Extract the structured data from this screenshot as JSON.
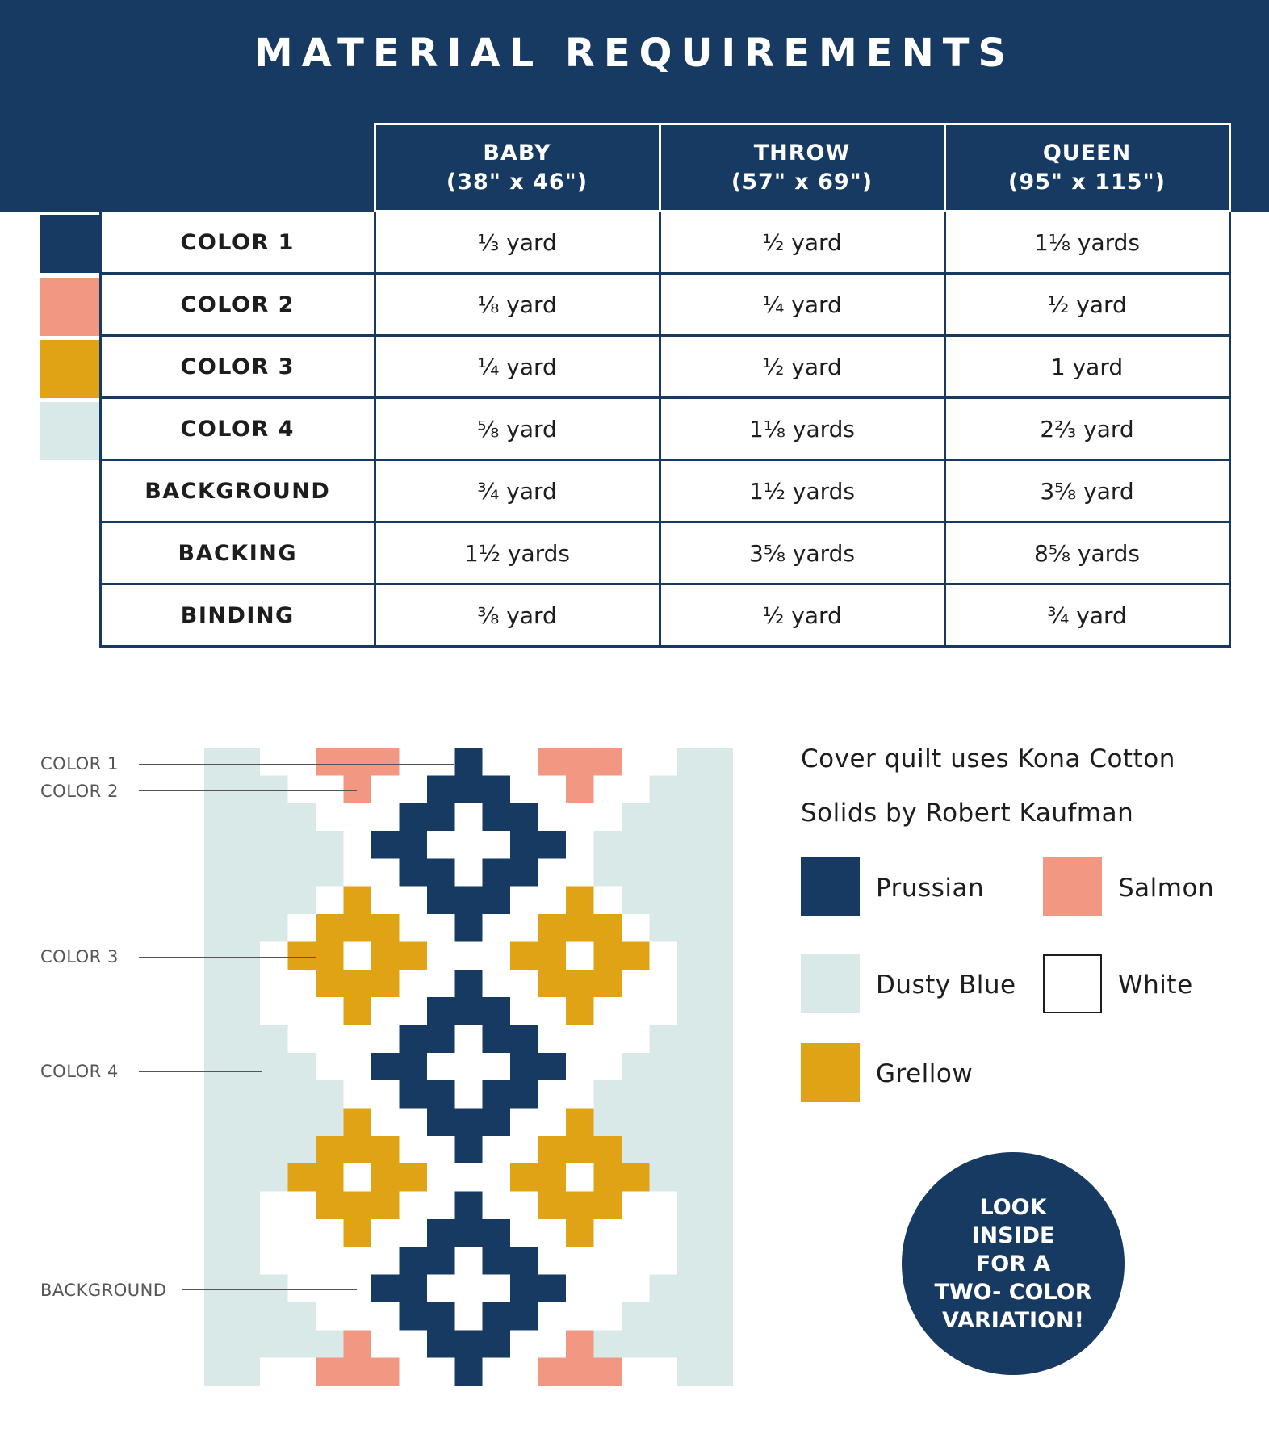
{
  "title": "MATERIAL REQUIREMENTS",
  "sizes": [
    {
      "name": "BABY",
      "dims": "(38\" x 46\")"
    },
    {
      "name": "THROW",
      "dims": "(57\" x 69\")"
    },
    {
      "name": "QUEEN",
      "dims": "(95\" x 115\")"
    }
  ],
  "rows": [
    {
      "label": "COLOR 1",
      "swatch": "#173a63",
      "values": [
        "⅓ yard",
        "½ yard",
        "1⅛ yards"
      ]
    },
    {
      "label": "COLOR 2",
      "swatch": "#f29882",
      "values": [
        "⅛ yard",
        "¼ yard",
        "½ yard"
      ]
    },
    {
      "label": "COLOR 3",
      "swatch": "#e0a316",
      "values": [
        "¼ yard",
        "½ yard",
        "1 yard"
      ]
    },
    {
      "label": "COLOR 4",
      "swatch": "#d8e9e8",
      "values": [
        "⅝ yard",
        "1⅛ yards",
        "2⅔ yard"
      ]
    },
    {
      "label": "BACKGROUND",
      "values": [
        "¾ yard",
        "1½ yards",
        "3⅝ yard"
      ]
    },
    {
      "label": "BACKING",
      "values": [
        "1½ yards",
        "3⅝ yards",
        "8⅝ yards"
      ]
    },
    {
      "label": "BINDING",
      "values": [
        "⅜ yard",
        "½ yard",
        "¾ yard"
      ]
    }
  ],
  "callouts": [
    "COLOR 1",
    "COLOR 2",
    "COLOR 3",
    "COLOR 4",
    "BACKGROUND"
  ],
  "credit": {
    "line1": "Cover quilt uses Kona Cotton",
    "line2": "Solids by Robert Kaufman"
  },
  "legend": [
    {
      "name": "Prussian",
      "color": "#173a63"
    },
    {
      "name": "Salmon",
      "color": "#f29882"
    },
    {
      "name": "Dusty Blue",
      "color": "#d8e9e8"
    },
    {
      "name": "White",
      "color": "#ffffff"
    },
    {
      "name": "Grellow",
      "color": "#e0a316"
    }
  ],
  "promo": {
    "line1": "LOOK",
    "line2": "INSIDE",
    "line3": "FOR A",
    "line4": "TWO- COLOR",
    "line5": "VARIATION!"
  },
  "colors": {
    "navy": "#173a63",
    "salmon": "#f29882",
    "gold": "#e0a316",
    "dusty": "#d8e9e8",
    "white": "#ffffff"
  }
}
